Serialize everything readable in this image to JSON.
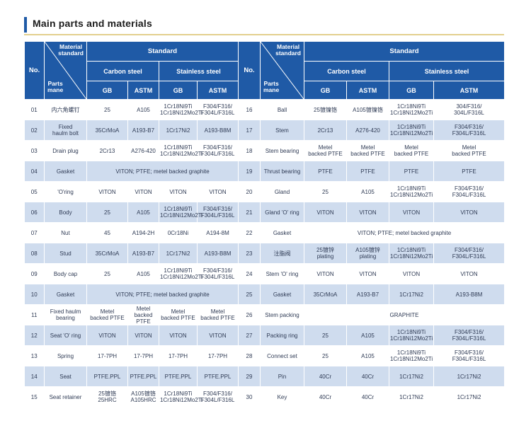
{
  "title": "Main parts and materials",
  "header": {
    "no": "No.",
    "material_standard": "Material\nstandard",
    "parts_name": "Parts\nmane",
    "standard": "Standard",
    "carbon_steel": "Carbon steel",
    "stainless_steel": "Stainless steel",
    "gb": "GB",
    "astm": "ASTM"
  },
  "rows": [
    {
      "left": {
        "no": "01",
        "name": "内六角螺钉",
        "cs_gb": "25",
        "cs_astm": "A105",
        "ss_gb": "1Cr18Ni9Ti\n1Cr18Ni12Mo2Ti",
        "ss_astm": "F304/F316/\nF304L/F316L"
      },
      "right": {
        "no": "16",
        "name": "Ball",
        "cs_gb": "25镀镍铬",
        "cs_astm": "A105镀镍铬",
        "ss_gb": "1Cr18Ni9Ti\n1Cr18Ni12Mo2Ti",
        "ss_astm": "304/F316/\n304L/F316L"
      }
    },
    {
      "left": {
        "no": "02",
        "name": "Fixed\nhaulm bolt",
        "cs_gb": "35CrMoA",
        "cs_astm": "A193-B7",
        "ss_gb": "1Cr17Ni2",
        "ss_astm": "A193-B8M"
      },
      "right": {
        "no": "17",
        "name": "Stem",
        "cs_gb": "2Cr13",
        "cs_astm": "A276-420",
        "ss_gb": "1Cr18Ni9Ti\n1Cr18Ni12Mo2Ti",
        "ss_astm": "F304/F316/\nF304L/F316L"
      }
    },
    {
      "left": {
        "no": "03",
        "name": "Drain plug",
        "cs_gb": "2Cr13",
        "cs_astm": "A276-420",
        "ss_gb": "1Cr18Ni9Ti\n1Cr18Ni12Mo2Ti",
        "ss_astm": "F304/F316/\nF304L/F316L"
      },
      "right": {
        "no": "18",
        "name": "Stem bearing",
        "cs_gb": "Metel\nbacked PTFE",
        "cs_astm": "Metel\nbacked PTFE",
        "ss_gb": "Metel\nbacked PTFE",
        "ss_astm": "Metel\nbacked PTFE"
      }
    },
    {
      "left": {
        "no": "04",
        "name": "Gasket",
        "merged": "VITON; PTFE; metel backed graphite"
      },
      "right": {
        "no": "19",
        "name": "Thrust bearing",
        "cs_gb": "PTFE",
        "cs_astm": "PTFE",
        "ss_gb": "PTFE",
        "ss_astm": "PTFE"
      }
    },
    {
      "left": {
        "no": "05",
        "name": "'O'ring",
        "cs_gb": "VITON",
        "cs_astm": "VITON",
        "ss_gb": "VITON",
        "ss_astm": "VITON"
      },
      "right": {
        "no": "20",
        "name": "Gland",
        "cs_gb": "25",
        "cs_astm": "A105",
        "ss_gb": "1Cr18Ni9Ti\n1Cr18Ni12Mo2Ti",
        "ss_astm": "F304/F316/\nF304L/F316L"
      }
    },
    {
      "left": {
        "no": "06",
        "name": "Body",
        "cs_gb": "25",
        "cs_astm": "A105",
        "ss_gb": "1Cr18Ni9Ti\n1Cr18Ni12Mo2Ti",
        "ss_astm": "F304/F316/\nF304L/F316L"
      },
      "right": {
        "no": "21",
        "name": "Gland 'O' ring",
        "cs_gb": "VITON",
        "cs_astm": "VITON",
        "ss_gb": "VITON",
        "ss_astm": "VITON"
      }
    },
    {
      "left": {
        "no": "07",
        "name": "Nut",
        "cs_gb": "45",
        "cs_astm": "A194-2H",
        "ss_gb": "0Cr18Ni",
        "ss_astm": "A194-8M"
      },
      "right": {
        "no": "22",
        "name": "Gasket",
        "merged": "VITON; PTFE; metel backed graphite"
      }
    },
    {
      "left": {
        "no": "08",
        "name": "Stud",
        "cs_gb": "35CrMoA",
        "cs_astm": "A193-B7",
        "ss_gb": "1Cr17Ni2",
        "ss_astm": "A193-B8M"
      },
      "right": {
        "no": "23",
        "name": "注脂阀",
        "cs_gb": "25镀锌\nplating",
        "cs_astm": "A105镀锌\nplating",
        "ss_gb": "1Cr18Ni9Ti\n1Cr18Ni12Mo2Ti",
        "ss_astm": "F304/F316/\nF304L/F316L"
      }
    },
    {
      "left": {
        "no": "09",
        "name": "Body cap",
        "cs_gb": "25",
        "cs_astm": "A105",
        "ss_gb": "1Cr18Ni9Ti\n1Cr18Ni12Mo2Ti",
        "ss_astm": "F304/F316/\nF304L/F316L"
      },
      "right": {
        "no": "24",
        "name": "Stem 'O' ring",
        "cs_gb": "VITON",
        "cs_astm": "VITON",
        "ss_gb": "VITON",
        "ss_astm": "VITON"
      }
    },
    {
      "left": {
        "no": "10",
        "name": "Gasket",
        "merged": "VITON; PTFE; metel backed graphite"
      },
      "right": {
        "no": "25",
        "name": "Gasket",
        "cs_gb": "35CrMoA",
        "cs_astm": "A193-B7",
        "ss_gb": "1Cr17Ni2",
        "ss_astm": "A193-B8M"
      }
    },
    {
      "left": {
        "no": "11",
        "name": "Fixed haulm\nbearing",
        "cs_gb": "Metel\nbacked PTFE",
        "cs_astm": "Metel\nbacked PTFE",
        "ss_gb": "Metel\nbacked PTFE",
        "ss_astm": "Metel\nbacked PTFE"
      },
      "right": {
        "no": "26",
        "name": "Stem packing",
        "merged": "GRAPHITE"
      }
    },
    {
      "left": {
        "no": "12",
        "name": "Seat 'O' ring",
        "cs_gb": "VITON",
        "cs_astm": "VITON",
        "ss_gb": "VITON",
        "ss_astm": "VITON"
      },
      "right": {
        "no": "27",
        "name": "Packing ring",
        "cs_gb": "25",
        "cs_astm": "A105",
        "ss_gb": "1Cr18Ni9Ti\n1Cr18Ni12Mo2Ti",
        "ss_astm": "F304/F316/\nF304L/F316L"
      }
    },
    {
      "left": {
        "no": "13",
        "name": "Spring",
        "cs_gb": "17-7PH",
        "cs_astm": "17-7PH",
        "ss_gb": "17-7PH",
        "ss_astm": "17-7PH"
      },
      "right": {
        "no": "28",
        "name": "Connect set",
        "cs_gb": "25",
        "cs_astm": "A105",
        "ss_gb": "1Cr18Ni9Ti\n1Cr18Ni12Mo2Ti",
        "ss_astm": "F304/F316/\nF304L/F316L"
      }
    },
    {
      "left": {
        "no": "14",
        "name": "Seat",
        "cs_gb": "PTFE.PPL",
        "cs_astm": "PTFE.PPL",
        "ss_gb": "PTFE.PPL",
        "ss_astm": "PTFE.PPL"
      },
      "right": {
        "no": "29",
        "name": "Pin",
        "cs_gb": "40Cr",
        "cs_astm": "40Cr",
        "ss_gb": "1Cr17Ni2",
        "ss_astm": "1Cr17Ni2"
      }
    },
    {
      "left": {
        "no": "15",
        "name": "Seat retainer",
        "cs_gb": "25镀铬\n25HRC",
        "cs_astm": "A105镀铬\nA105HRC",
        "ss_gb": "1Cr18Ni9Ti\n1Cr18Ni12Mo2Ti",
        "ss_astm": "F304/F316/\nF304L/F316L"
      },
      "right": {
        "no": "30",
        "name": "Key",
        "cs_gb": "40Cr",
        "cs_astm": "40Cr",
        "ss_gb": "1Cr17Ni2",
        "ss_astm": "1Cr17Ni2"
      }
    }
  ]
}
